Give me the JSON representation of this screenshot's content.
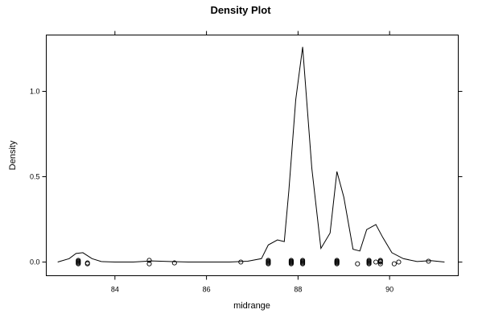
{
  "chart_data": {
    "type": "line",
    "title": "Density Plot",
    "xlabel": "midrange",
    "ylabel": "Density",
    "xlim": [
      82.5,
      91.5
    ],
    "ylim": [
      -0.08,
      1.33
    ],
    "x_ticks": [
      84,
      86,
      88,
      90
    ],
    "x_tick_labels": [
      "84",
      "86",
      "88",
      "90"
    ],
    "y_ticks": [
      0.0,
      0.5,
      1.0
    ],
    "y_tick_labels": [
      "0.0",
      "0.5",
      "1.0"
    ],
    "grid": false,
    "legend": "none",
    "series": [
      {
        "kind": "density-curve",
        "x": [
          82.75,
          83.0,
          83.15,
          83.3,
          83.5,
          83.7,
          84.0,
          84.4,
          84.8,
          85.2,
          85.6,
          86.0,
          86.5,
          86.9,
          87.2,
          87.35,
          87.55,
          87.7,
          87.8,
          87.95,
          88.1,
          88.3,
          88.5,
          88.7,
          88.85,
          89.0,
          89.2,
          89.35,
          89.5,
          89.7,
          89.85,
          90.05,
          90.3,
          90.6,
          90.9,
          91.2
        ],
        "y": [
          0.0,
          0.02,
          0.05,
          0.055,
          0.02,
          0.003,
          0.0,
          0.0,
          0.007,
          0.003,
          0.0,
          0.0,
          0.0,
          0.005,
          0.02,
          0.1,
          0.13,
          0.12,
          0.42,
          0.95,
          1.26,
          0.55,
          0.08,
          0.17,
          0.53,
          0.38,
          0.075,
          0.065,
          0.19,
          0.22,
          0.145,
          0.055,
          0.02,
          0.003,
          0.008,
          0.0
        ]
      },
      {
        "kind": "points",
        "x": [
          83.2,
          83.2,
          83.2,
          83.2,
          83.2,
          83.4,
          83.4,
          84.75,
          84.75,
          85.3,
          86.75,
          87.35,
          87.35,
          87.35,
          87.35,
          87.35,
          87.85,
          87.85,
          87.85,
          87.85,
          87.85,
          87.85,
          88.1,
          88.1,
          88.1,
          88.1,
          88.1,
          88.85,
          88.85,
          88.85,
          88.85,
          88.85,
          88.85,
          89.3,
          89.55,
          89.55,
          89.55,
          89.55,
          89.55,
          89.7,
          89.8,
          89.8,
          89.8,
          89.8,
          90.1,
          90.2,
          90.85
        ],
        "y": [
          0.0,
          0.01,
          -0.01,
          0.005,
          -0.005,
          -0.005,
          -0.01,
          0.01,
          -0.01,
          -0.005,
          0.0,
          0.0,
          0.01,
          -0.01,
          0.005,
          -0.005,
          0.0,
          0.01,
          -0.01,
          0.005,
          -0.005,
          0.0,
          0.0,
          0.01,
          -0.01,
          0.005,
          -0.005,
          0.0,
          0.01,
          -0.01,
          0.005,
          -0.005,
          0.0,
          -0.01,
          0.0,
          0.01,
          -0.01,
          0.005,
          -0.005,
          0.0,
          0.0,
          0.01,
          -0.01,
          0.005,
          -0.01,
          0.0,
          0.005
        ]
      }
    ]
  }
}
